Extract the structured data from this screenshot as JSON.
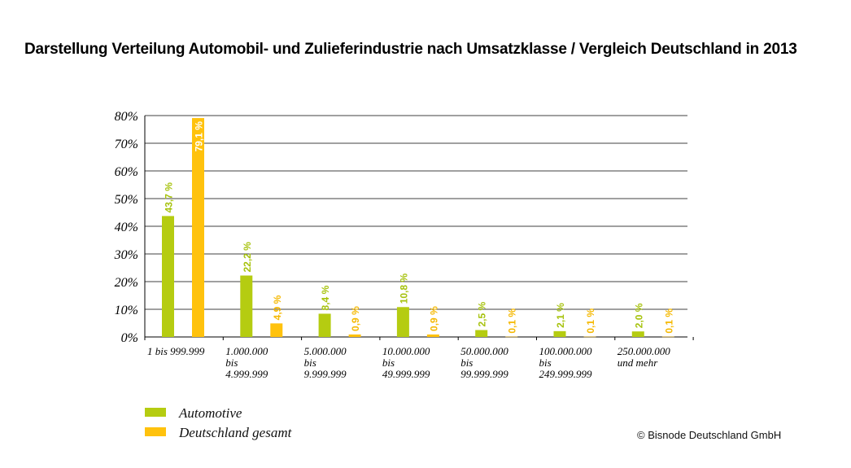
{
  "title": "Darstellung Verteilung Automobil- und Zulieferindustrie nach Umsatzklasse / Vergleich Deutschland in 2013",
  "copyright": "© Bisnode Deutschland GmbH",
  "colors": {
    "automotive": "#b5cc11",
    "deutschland": "#ffc20d",
    "automotive_label": "#a6c20c",
    "deutschland_label": "#f5b800"
  },
  "chart_data": {
    "type": "bar",
    "categories": [
      [
        "1 bis 999.999"
      ],
      [
        "1.000.000",
        "bis",
        "4.999.999"
      ],
      [
        "5.000.000",
        "bis",
        "9.999.999"
      ],
      [
        "10.000.000",
        "bis",
        "49.999.999"
      ],
      [
        "50.000.000",
        "bis",
        "99.999.999"
      ],
      [
        "100.000.000",
        "bis",
        "249.999.999"
      ],
      [
        "250.000.000",
        "und mehr"
      ]
    ],
    "series": [
      {
        "name": "Automotive",
        "values": [
          43.7,
          22.2,
          8.4,
          10.8,
          2.5,
          2.1,
          2.0
        ],
        "labels": [
          "43,7 %",
          "22,2 %",
          "8,4 %",
          "10,8 %",
          "2,5 %",
          "2,1 %",
          "2,0 %"
        ]
      },
      {
        "name": "Deutschland gesamt",
        "values": [
          79.1,
          4.9,
          0.9,
          0.9,
          0.1,
          0.1,
          0.1
        ],
        "labels": [
          "79,1 %",
          "4,9 %",
          "0,9 %",
          "0,9 %",
          "0,1 %",
          "0,1 %",
          "0,1 %"
        ]
      }
    ],
    "yticks": [
      "0%",
      "10%",
      "20%",
      "30%",
      "40%",
      "50%",
      "60%",
      "70%",
      "80%"
    ],
    "ylim": [
      0,
      80
    ],
    "grid": true,
    "legend_position": "bottom-left"
  }
}
